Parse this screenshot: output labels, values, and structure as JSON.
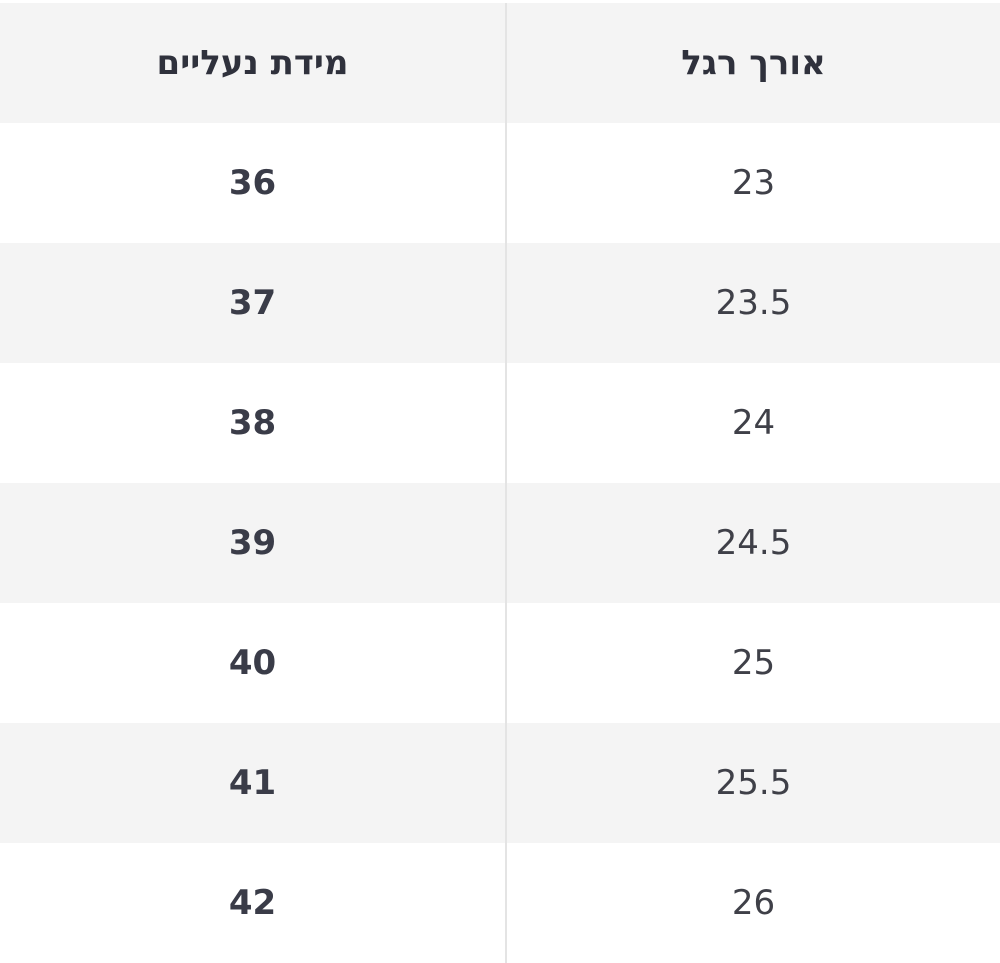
{
  "table": {
    "headers": {
      "shoe_size": "מידת נעליים",
      "foot_length": "אורך רגל"
    },
    "rows": [
      {
        "shoe_size": "36",
        "foot_length": "23"
      },
      {
        "shoe_size": "37",
        "foot_length": "23.5"
      },
      {
        "shoe_size": "38",
        "foot_length": "24"
      },
      {
        "shoe_size": "39",
        "foot_length": "24.5"
      },
      {
        "shoe_size": "40",
        "foot_length": "25"
      },
      {
        "shoe_size": "41",
        "foot_length": "25.5"
      },
      {
        "shoe_size": "42",
        "foot_length": "26"
      }
    ]
  },
  "colors": {
    "stripe": "#f4f4f4",
    "text": "#3a3c48",
    "divider": "#e4e4e4"
  }
}
